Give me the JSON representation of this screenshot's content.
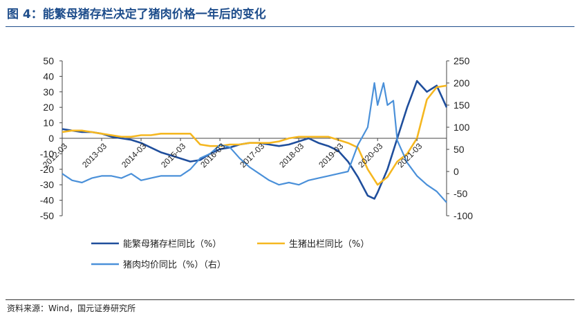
{
  "header": {
    "title": "图 4：能繁母猪存栏决定了猪肉价格一年后的变化"
  },
  "footer": {
    "source": "资料来源：Wind，国元证券研究所"
  },
  "chart_data": {
    "type": "line",
    "left_axis": {
      "ylim": [
        -50,
        50
      ],
      "ticks": [
        50,
        40,
        30,
        20,
        10,
        0,
        -10,
        -20,
        -30,
        -40,
        -50
      ]
    },
    "right_axis": {
      "ylim": [
        -100,
        250
      ],
      "ticks": [
        250,
        200,
        150,
        100,
        50,
        0,
        -50,
        -100
      ]
    },
    "x_ticks": [
      "2012-03",
      "2013-03",
      "2014-03",
      "2015-03",
      "2016-03",
      "2017-03",
      "2018-03",
      "2019-03",
      "2020-03",
      "2021-03"
    ],
    "x_range": [
      2012.0,
      2021.75
    ],
    "grid": false,
    "legend_position": "bottom",
    "series": [
      {
        "name": "能繁母猪存栏同比（%）",
        "axis": "left",
        "color": "#1f4e9c",
        "x": [
          2012.0,
          2012.25,
          2012.5,
          2012.75,
          2013.0,
          2013.25,
          2013.5,
          2013.75,
          2014.0,
          2014.25,
          2014.5,
          2014.75,
          2015.0,
          2015.25,
          2015.5,
          2015.75,
          2016.0,
          2016.25,
          2016.5,
          2016.75,
          2017.0,
          2017.25,
          2017.5,
          2017.75,
          2018.0,
          2018.25,
          2018.5,
          2018.75,
          2019.0,
          2019.25,
          2019.5,
          2019.75,
          2019.92,
          2020.0,
          2020.25,
          2020.5,
          2020.75,
          2021.0,
          2021.25,
          2021.5,
          2021.75
        ],
        "y": [
          6,
          5,
          4,
          4,
          3,
          1,
          0,
          -1,
          -3,
          -6,
          -9,
          -11,
          -13,
          -15,
          -14,
          -10,
          -7,
          -6,
          -4,
          -3,
          -3,
          -4,
          -5,
          -4,
          -2,
          0,
          -3,
          -5,
          -8,
          -15,
          -25,
          -37,
          -39,
          -35,
          -20,
          0,
          20,
          37,
          30,
          34,
          20
        ]
      },
      {
        "name": "生猪出栏同比（%）",
        "axis": "left",
        "color": "#f5b720",
        "x": [
          2012.0,
          2012.25,
          2012.5,
          2012.75,
          2013.0,
          2013.25,
          2013.5,
          2013.75,
          2014.0,
          2014.25,
          2014.5,
          2014.75,
          2015.0,
          2015.25,
          2015.5,
          2015.75,
          2016.0,
          2016.25,
          2016.5,
          2016.75,
          2017.0,
          2017.25,
          2017.5,
          2017.75,
          2018.0,
          2018.25,
          2018.5,
          2018.75,
          2019.0,
          2019.25,
          2019.5,
          2019.75,
          2020.0,
          2020.25,
          2020.5,
          2020.75,
          2021.0,
          2021.25,
          2021.5,
          2021.75
        ],
        "y": [
          4,
          5,
          5,
          4,
          3,
          2,
          1,
          1,
          2,
          2,
          3,
          3,
          3,
          3,
          -4,
          -5,
          -5,
          -4,
          -4,
          -3,
          -3,
          -3,
          -2,
          0,
          1,
          1,
          1,
          1,
          -1,
          -3,
          -6,
          -20,
          -30,
          -25,
          -15,
          -10,
          0,
          25,
          33,
          34
        ]
      },
      {
        "name": "猪肉均价同比（%）（右）",
        "axis": "right",
        "color": "#4a90d9",
        "x": [
          2012.0,
          2012.25,
          2012.5,
          2012.75,
          2013.0,
          2013.25,
          2013.5,
          2013.75,
          2014.0,
          2014.25,
          2014.5,
          2014.75,
          2015.0,
          2015.25,
          2015.5,
          2015.75,
          2016.0,
          2016.25,
          2016.5,
          2016.75,
          2017.0,
          2017.25,
          2017.5,
          2017.75,
          2018.0,
          2018.25,
          2018.5,
          2018.75,
          2019.0,
          2019.25,
          2019.5,
          2019.75,
          2019.92,
          2020.0,
          2020.15,
          2020.25,
          2020.4,
          2020.5,
          2020.75,
          2021.0,
          2021.25,
          2021.5,
          2021.75
        ],
        "y": [
          -5,
          -20,
          -25,
          -15,
          -10,
          -10,
          -15,
          -5,
          -20,
          -15,
          -10,
          -10,
          -10,
          5,
          30,
          40,
          60,
          55,
          30,
          10,
          -5,
          -20,
          -30,
          -25,
          -30,
          -20,
          -15,
          -10,
          -5,
          0,
          60,
          100,
          200,
          150,
          200,
          150,
          160,
          70,
          20,
          -10,
          -30,
          -45,
          -70
        ]
      }
    ]
  }
}
